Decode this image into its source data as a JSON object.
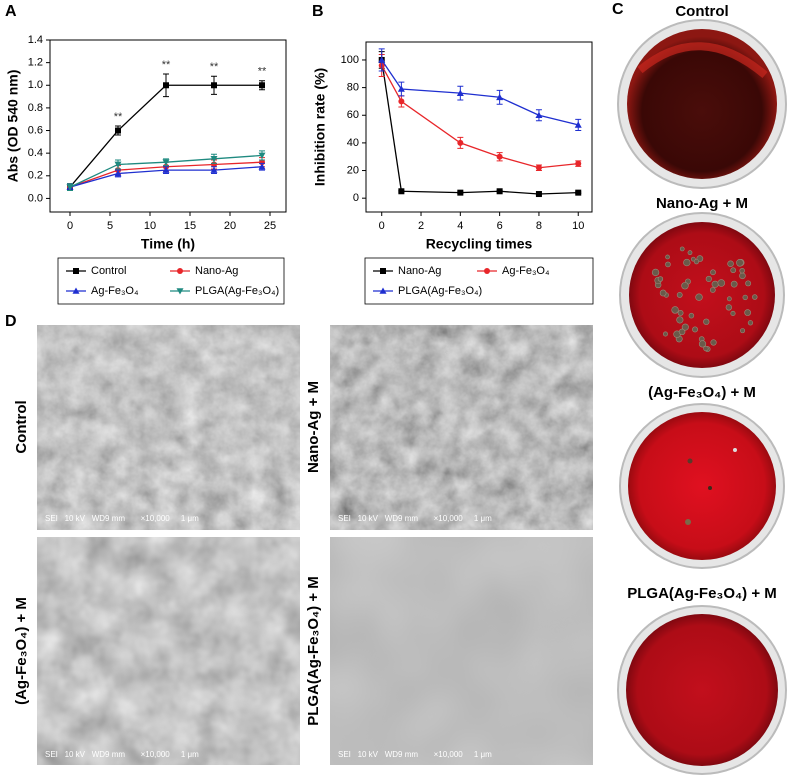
{
  "chart_data": [
    {
      "type": "line",
      "panel_label": "A",
      "x_label": "Time (h)",
      "y_label": "Abs (OD 540 nm)",
      "x": [
        0,
        6,
        12,
        18,
        24
      ],
      "series": [
        {
          "name": "Control",
          "color": "#000000",
          "marker": "square",
          "values": [
            0.1,
            0.6,
            1.0,
            1.0,
            1.0
          ],
          "errors": [
            0.03,
            0.04,
            0.1,
            0.08,
            0.04
          ]
        },
        {
          "name": "Nano-Ag",
          "color": "#e8262a",
          "marker": "circle",
          "values": [
            0.1,
            0.25,
            0.28,
            0.3,
            0.32
          ],
          "errors": [
            0.03,
            0.04,
            0.04,
            0.04,
            0.04
          ]
        },
        {
          "name": "Ag-Fe₃O₄",
          "color": "#1f2fd0",
          "marker": "triangle",
          "values": [
            0.1,
            0.22,
            0.25,
            0.25,
            0.28
          ],
          "errors": [
            0.03,
            0.03,
            0.03,
            0.03,
            0.03
          ]
        },
        {
          "name": "PLGA(Ag-Fe₃O₄)",
          "color": "#1f8a80",
          "marker": "triangle-down",
          "values": [
            0.1,
            0.3,
            0.32,
            0.35,
            0.38
          ],
          "errors": [
            0.03,
            0.04,
            0.03,
            0.04,
            0.04
          ]
        }
      ],
      "annotations": [
        {
          "x": 6,
          "text": "**"
        },
        {
          "x": 12,
          "text": "**"
        },
        {
          "x": 18,
          "text": "**"
        },
        {
          "x": 24,
          "text": "**"
        }
      ],
      "xlim": [
        -2.5,
        27
      ],
      "xticks": [
        0,
        5,
        10,
        15,
        20,
        25
      ],
      "ylim": [
        -0.12,
        1.4
      ],
      "yticks": [
        {
          "value": 0,
          "label": "0.0"
        },
        0.2,
        0.4,
        0.6,
        0.8,
        {
          "value": 1,
          "label": "1.0"
        },
        1.2,
        1.4
      ]
    },
    {
      "type": "line",
      "panel_label": "B",
      "x_label": "Recycling times",
      "y_label": "Inhibition rate (%)",
      "x": [
        0,
        1,
        4,
        6,
        8,
        10
      ],
      "series": [
        {
          "name": "Nano-Ag",
          "color": "#000000",
          "marker": "square",
          "values": [
            100,
            5,
            4,
            5,
            3,
            4
          ],
          "errors": [
            6,
            0.5,
            0.5,
            0.5,
            0.5,
            0.5
          ]
        },
        {
          "name": "Ag-Fe₃O₄",
          "color": "#e8262a",
          "marker": "circle",
          "values": [
            96,
            70,
            40,
            30,
            22,
            25
          ],
          "errors": [
            8,
            4,
            4,
            3,
            2,
            2
          ]
        },
        {
          "name": "PLGA(Ag-Fe₃O₄)",
          "color": "#1f2fd0",
          "marker": "triangle",
          "values": [
            100,
            79,
            76,
            73,
            60,
            53
          ],
          "errors": [
            8,
            5,
            5,
            5,
            4,
            4
          ]
        }
      ],
      "xlim": [
        -0.8,
        10.7
      ],
      "xticks": [
        0,
        2,
        4,
        6,
        8,
        10
      ],
      "ylim": [
        -10,
        113
      ],
      "yticks": [
        0,
        20,
        40,
        60,
        80,
        100
      ]
    }
  ],
  "panel_c": {
    "label": "C",
    "dishes": [
      {
        "label": "Control"
      },
      {
        "label": "Nano-Ag + M"
      },
      {
        "label": "(Ag-Fe₃O₄) + M"
      },
      {
        "label": "PLGA(Ag-Fe₃O₄) + M"
      }
    ]
  },
  "panel_d": {
    "label": "D",
    "images": [
      {
        "label": "Control",
        "caption": "SEI   10 kV   WD9 mm       ×10,000     1 μm"
      },
      {
        "label": "Nano-Ag + M",
        "caption": "SEI   10 kV   WD9 mm       ×10,000     1 μm"
      },
      {
        "label": "(Ag-Fe₃O₄) + M",
        "caption": "SEI   10 kV   WD9 mm       ×10,000     1 μm"
      },
      {
        "label": "PLGA(Ag-Fe₃O₄) + M",
        "caption": "SEI   10 kV   WD9 mm       ×10,000     1 μm"
      }
    ]
  }
}
